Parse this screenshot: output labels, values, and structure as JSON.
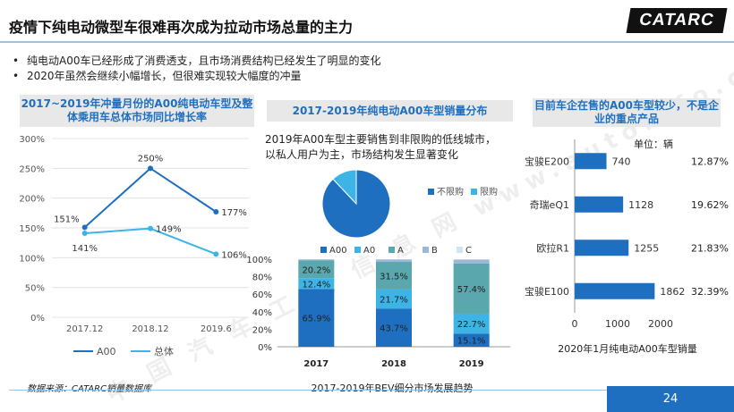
{
  "header": {
    "title": "疫情下纯电动微型车很难再次成为拉动市场总量的主力",
    "logo": "CATARC"
  },
  "bullets": [
    "纯电动A00车已经形成了消费透支，且市场消费结构已经发生了明显的变化",
    "2020年虽然会继续小幅增长，但很难实现较大幅度的冲量"
  ],
  "watermark": "中 国 汽 车 工 业 信 息 网  www.autoinfo.org.cn",
  "colors": {
    "dark_blue": "#1f6fc0",
    "light_blue": "#3cb4e6",
    "teal": "#5aa7ad",
    "grey_blue": "#9bb9d6"
  },
  "footer": {
    "source": "数据来源：CATARC销量数据库",
    "page": "24"
  },
  "chart_data": [
    {
      "type": "line",
      "title": "2017~2019年冲量月份的A00纯电动车型及整体乘用车总体市场同比增长率",
      "categories": [
        "2017.12",
        "2018.12",
        "2019.6"
      ],
      "yticks": [
        "300%",
        "250%",
        "200%",
        "150%",
        "100%",
        "50%",
        "0%"
      ],
      "ylim": [
        0,
        300
      ],
      "series": [
        {
          "name": "A00",
          "values": [
            151,
            250,
            177
          ],
          "labels": [
            "151%",
            "250%",
            "177%"
          ],
          "color": "#1f6fc0"
        },
        {
          "name": "总体",
          "values": [
            141,
            149,
            106
          ],
          "labels": [
            "141%",
            "149%",
            "106%"
          ],
          "color": "#3cb4e6"
        }
      ],
      "legend_position": "bottom"
    },
    {
      "type": "pie",
      "title": "2017-2019年纯电动A00车型销量分布",
      "annotation": "2019年A00车型主要销售到非限购的低线城市，以私人用户为主，市场结构发生显著变化",
      "slices": [
        {
          "name": "不限购",
          "value": 88,
          "color": "#1f6fc0"
        },
        {
          "name": "限购",
          "value": 12,
          "color": "#3cb4e6"
        }
      ],
      "legend_position": "right"
    },
    {
      "type": "bar",
      "subtype": "stacked_percent",
      "title": "2017-2019年BEV细分市场发展趋势",
      "categories": [
        "2017",
        "2018",
        "2019"
      ],
      "yticks": [
        "100%",
        "80%",
        "60%",
        "40%",
        "20%",
        "0%"
      ],
      "ylim": [
        0,
        100
      ],
      "series": [
        {
          "name": "A00",
          "values": [
            65.9,
            43.7,
            15.1
          ],
          "labels": [
            "65.9%",
            "43.7%",
            "15.1%"
          ],
          "color": "#1f6fc0"
        },
        {
          "name": "A0",
          "values": [
            12.4,
            21.7,
            22.7
          ],
          "labels": [
            "12.4%",
            "21.7%",
            "22.7%"
          ],
          "color": "#3cb4e6"
        },
        {
          "name": "A",
          "values": [
            20.2,
            31.5,
            57.4
          ],
          "labels": [
            "20.2%",
            "31.5%",
            "57.4%"
          ],
          "color": "#5aa7ad"
        },
        {
          "name": "B",
          "values": [
            1.3,
            2.8,
            4.2
          ],
          "labels": [
            "",
            "",
            ""
          ],
          "color": "#9bb9d6"
        },
        {
          "name": "C",
          "values": [
            0.2,
            0.3,
            0.6
          ],
          "labels": [
            "",
            "",
            ""
          ],
          "color": "#cfe3f3"
        }
      ],
      "legend_position": "top"
    },
    {
      "type": "bar",
      "subtype": "horizontal",
      "title": "目前车企在售的A00车型较少，不是企业的重点产品",
      "xlabel": "2020年1月纯电动A00车型销量",
      "unit_label": "单位：辆",
      "categories": [
        "宝骏E200",
        "奇瑞eQ1",
        "欧拉R1",
        "宝骏E100"
      ],
      "values": [
        740,
        1128,
        1255,
        1862
      ],
      "shares": [
        "12.87%",
        "19.62%",
        "21.83%",
        "32.39%"
      ],
      "xticks": [
        "0",
        "1000",
        "2000"
      ],
      "xlim": [
        0,
        2000
      ],
      "color": "#1f6fc0"
    }
  ]
}
